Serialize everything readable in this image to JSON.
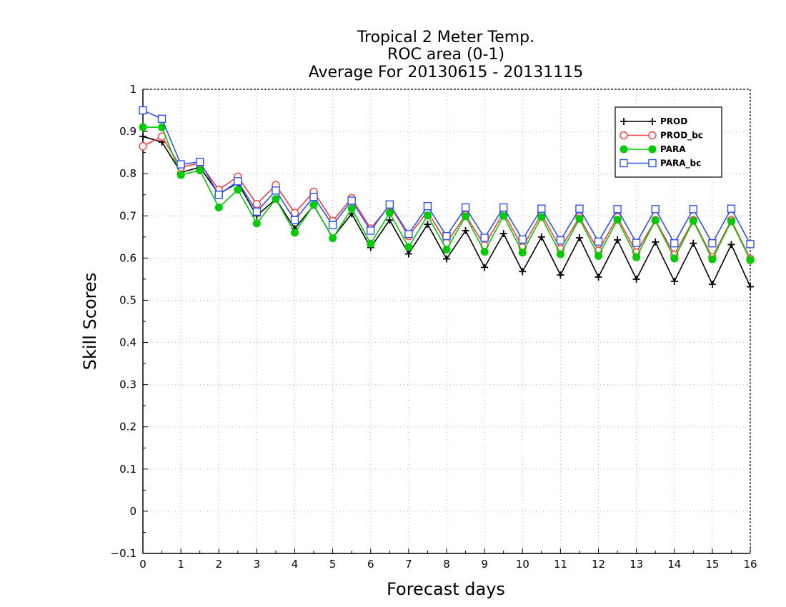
{
  "chart_data": {
    "type": "line",
    "title": [
      "Tropical 2 Meter Temp.",
      "ROC area (0-1)",
      "Average For 20130615 - 20131115"
    ],
    "xlabel": "Forecast days",
    "ylabel": "Skill Scores",
    "xlim": [
      0,
      16
    ],
    "ylim": [
      -0.1,
      1
    ],
    "xticks": [
      0,
      1,
      2,
      3,
      4,
      5,
      6,
      7,
      8,
      9,
      10,
      11,
      12,
      13,
      14,
      15,
      16
    ],
    "xtick_labels": [
      "0",
      "1",
      "2",
      "3",
      "4",
      "5",
      "6",
      "7",
      "8",
      "9",
      "10",
      "11",
      "12",
      "13",
      "14",
      "15",
      "16"
    ],
    "yticks": [
      -0.1,
      0,
      0.1,
      0.2,
      0.3,
      0.4,
      0.5,
      0.6,
      0.7,
      0.8,
      0.9,
      1
    ],
    "ytick_labels": [
      "−0.1",
      "0",
      "0.1",
      "0.2",
      "0.3",
      "0.4",
      "0.5",
      "0.6",
      "0.7",
      "0.8",
      "0.9",
      "1"
    ],
    "grid": true,
    "legend_position": "top-right",
    "x": [
      0,
      0.5,
      1,
      1.5,
      2,
      2.5,
      3,
      3.5,
      4,
      4.5,
      5,
      5.5,
      6,
      6.5,
      7,
      7.5,
      8,
      8.5,
      9,
      9.5,
      10,
      10.5,
      11,
      11.5,
      12,
      12.5,
      13,
      13.5,
      14,
      14.5,
      15,
      15.5,
      16
    ],
    "series": [
      {
        "name": "PROD",
        "color": "#000000",
        "marker": "plus",
        "values": [
          0.888,
          0.875,
          0.803,
          0.815,
          0.752,
          0.778,
          0.7,
          0.74,
          0.67,
          0.725,
          0.648,
          0.705,
          0.625,
          0.69,
          0.61,
          0.68,
          0.598,
          0.665,
          0.578,
          0.658,
          0.568,
          0.65,
          0.56,
          0.648,
          0.555,
          0.643,
          0.55,
          0.638,
          0.545,
          0.635,
          0.538,
          0.632,
          0.532
        ]
      },
      {
        "name": "PROD_bc",
        "color": "#ff3b3b",
        "marker": "open-circle",
        "values": [
          0.865,
          0.888,
          0.815,
          0.825,
          0.762,
          0.793,
          0.728,
          0.773,
          0.707,
          0.757,
          0.688,
          0.742,
          0.67,
          0.725,
          0.652,
          0.71,
          0.636,
          0.702,
          0.63,
          0.708,
          0.625,
          0.705,
          0.622,
          0.697,
          0.617,
          0.697,
          0.613,
          0.69,
          0.608,
          0.69,
          0.602,
          0.69,
          0.598
        ]
      },
      {
        "name": "PARA",
        "color": "#00cc00",
        "marker": "filled-circle",
        "values": [
          0.91,
          0.91,
          0.797,
          0.808,
          0.72,
          0.762,
          0.682,
          0.74,
          0.66,
          0.726,
          0.647,
          0.717,
          0.634,
          0.707,
          0.626,
          0.701,
          0.62,
          0.699,
          0.615,
          0.7,
          0.613,
          0.697,
          0.609,
          0.693,
          0.605,
          0.691,
          0.602,
          0.689,
          0.599,
          0.688,
          0.597,
          0.687,
          0.595
        ]
      },
      {
        "name": "PARA_bc",
        "color": "#2b50ff",
        "marker": "open-square",
        "values": [
          0.95,
          0.93,
          0.822,
          0.828,
          0.75,
          0.782,
          0.71,
          0.76,
          0.69,
          0.745,
          0.678,
          0.736,
          0.665,
          0.727,
          0.657,
          0.723,
          0.652,
          0.72,
          0.648,
          0.72,
          0.644,
          0.717,
          0.642,
          0.717,
          0.639,
          0.716,
          0.636,
          0.716,
          0.635,
          0.716,
          0.635,
          0.717,
          0.633
        ]
      }
    ]
  }
}
